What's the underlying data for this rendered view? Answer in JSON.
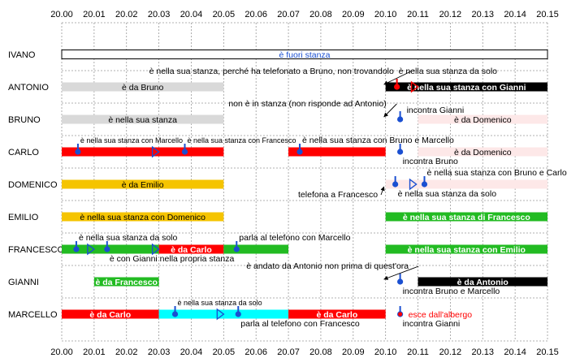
{
  "chart_data": {
    "type": "timeline",
    "colors": {
      "white": "#ffffff",
      "gray": "#d9d9d9",
      "black": "#000000",
      "red": "#ff0000",
      "pink": "#fde8e8",
      "yellow": "#f5c400",
      "green": "#22bb22",
      "cyan": "#00ffff",
      "marker": "#1a4fd1",
      "alert": "#ff0000"
    },
    "x_ticks": [
      "20.00",
      "20.01",
      "20.02",
      "20.03",
      "20.04",
      "20.05",
      "20.06",
      "20.07",
      "20.08",
      "20.09",
      "20.10",
      "20.11",
      "20.12",
      "20.13",
      "20.14",
      "20.15"
    ],
    "rows": [
      {
        "name": "IVANO",
        "bars": [
          {
            "start": 0,
            "end": 15,
            "color": "white",
            "label": "è fuori stanza",
            "label_color": "#1a4fd1"
          }
        ],
        "events": []
      },
      {
        "name": "ANTONIO",
        "bars": [
          {
            "start": 0,
            "end": 5,
            "color": "gray",
            "label": "è da Bruno",
            "label_color": "#000000"
          },
          {
            "start": 10,
            "end": 15,
            "color": "black",
            "label": "è nella sua stanza con Gianni",
            "label_color": "#ffffff"
          }
        ],
        "events": [
          {
            "t": 10.35,
            "kind": "pin-red",
            "text": ""
          },
          {
            "t": 10.9,
            "kind": "triangle-red",
            "text": ""
          }
        ],
        "annotations": [
          {
            "text": "è nella sua stanza, perché ha telefonato a Bruno, non trovandolo",
            "at": 2.7,
            "row_offset": -1,
            "anchor": "start",
            "arrow_to": 9.95
          },
          {
            "text": "è nella sua stanza da solo",
            "at": 10.4,
            "row_offset": -1,
            "anchor": "start"
          }
        ]
      },
      {
        "name": "BRUNO",
        "bars": [
          {
            "start": 0,
            "end": 5,
            "color": "gray",
            "label": "è nella sua stanza",
            "label_color": "#000000"
          },
          {
            "start": 11,
            "end": 15,
            "color": "pink",
            "label": "è da Domenico",
            "label_color": "#000000"
          }
        ],
        "events": [
          {
            "t": 10.45,
            "kind": "pin",
            "text": "incontra Gianni",
            "text_side": "right-up"
          }
        ],
        "annotations": [
          {
            "text": "non è in stanza (non risponde ad Antonio)",
            "at": 5.15,
            "row_offset": -1,
            "anchor": "start",
            "arrow_to": 9.95
          }
        ]
      },
      {
        "name": "CARLO",
        "bars": [
          {
            "start": 0,
            "end": 5,
            "color": "red",
            "label": "",
            "label_color": "#000000"
          },
          {
            "start": 7,
            "end": 10,
            "color": "red",
            "label": "",
            "label_color": "#000000"
          },
          {
            "start": 11,
            "end": 15,
            "color": "pink",
            "label": "è da Domenico",
            "label_color": "#000000"
          }
        ],
        "events": [
          {
            "t": 0.5,
            "kind": "pin",
            "text": "è nella sua stanza con Marcello",
            "text_side": "above",
            "small": true
          },
          {
            "t": 2.9,
            "kind": "triangle",
            "text": ""
          },
          {
            "t": 3.8,
            "kind": "pin",
            "text": "è nella sua stanza con Francesco",
            "text_side": "above",
            "small": true
          },
          {
            "t": 7.35,
            "kind": "pin",
            "text": "è nella sua stanza con Bruno e Marcello",
            "text_side": "above"
          },
          {
            "t": 10.45,
            "kind": "pin",
            "text": "incontra Bruno",
            "text_side": "below"
          }
        ]
      },
      {
        "name": "DOMENICO",
        "bars": [
          {
            "start": 0,
            "end": 5,
            "color": "yellow",
            "label": "è da Emilio",
            "label_color": "#000000"
          },
          {
            "start": 10,
            "end": 15,
            "color": "pink",
            "label": "",
            "label_color": "#000000"
          }
        ],
        "events": [
          {
            "t": 10.3,
            "kind": "pin",
            "text": "è nella sua stanza da solo",
            "text_side": "below-right"
          },
          {
            "t": 10.85,
            "kind": "triangle",
            "text": ""
          },
          {
            "t": 11.2,
            "kind": "pin",
            "text": "è nella sua stanza con Bruno e Carlo",
            "text_side": "above"
          }
        ],
        "annotations": [
          {
            "text": "telefona a Francesco",
            "at": 7.3,
            "row_offset": 1,
            "anchor": "start",
            "arrow_to": 9.95
          }
        ]
      },
      {
        "name": "EMILIO",
        "bars": [
          {
            "start": 0,
            "end": 5,
            "color": "yellow",
            "label": "è nella sua stanza con Domenico",
            "label_color": "#000000"
          },
          {
            "start": 10,
            "end": 15,
            "color": "green",
            "label": "è nella sua stanza di Francesco",
            "label_color": "#ffffff"
          }
        ],
        "events": []
      },
      {
        "name": "FRANCESCO",
        "bars": [
          {
            "start": 0,
            "end": 3,
            "color": "green",
            "label": "",
            "label_color": "#000000"
          },
          {
            "start": 3,
            "end": 5,
            "color": "red",
            "label": "è da Carlo",
            "label_color": "#ffffff"
          },
          {
            "start": 5,
            "end": 7,
            "color": "green",
            "label": "",
            "label_color": "#000000"
          },
          {
            "start": 10,
            "end": 15,
            "color": "green",
            "label": "è nella sua stanza con Emilio",
            "label_color": "#ffffff"
          }
        ],
        "events": [
          {
            "t": 0.45,
            "kind": "pin",
            "text": "è nella sua stanza da solo",
            "text_side": "above"
          },
          {
            "t": 0.9,
            "kind": "triangle",
            "text": ""
          },
          {
            "t": 1.4,
            "kind": "pin",
            "text": "è con Gianni nella propria stanza",
            "text_side": "below"
          },
          {
            "t": 2.9,
            "kind": "triangle",
            "text": ""
          },
          {
            "t": 5.4,
            "kind": "pin",
            "text": "parla al telefono con Marcello",
            "text_side": "above"
          }
        ]
      },
      {
        "name": "GIANNI",
        "bars": [
          {
            "start": 1,
            "end": 3,
            "color": "green",
            "label": "è da Francesco",
            "label_color": "#ffffff"
          },
          {
            "start": 11,
            "end": 15,
            "color": "black",
            "label": "è da Antonio",
            "label_color": "#ffffff"
          }
        ],
        "events": [
          {
            "t": 10.45,
            "kind": "pin",
            "text": "incontra Bruno e Marcello",
            "text_side": "below"
          }
        ],
        "annotations": [
          {
            "text": "è andato da Antonio non prima di quest'ora",
            "at": 5.7,
            "row_offset": -1,
            "anchor": "start",
            "arrow_to": 9.95
          }
        ]
      },
      {
        "name": "MARCELLO",
        "bars": [
          {
            "start": 0,
            "end": 3,
            "color": "red",
            "label": "è da Carlo",
            "label_color": "#ffffff"
          },
          {
            "start": 3,
            "end": 7,
            "color": "cyan",
            "label": "",
            "label_color": "#000000"
          },
          {
            "start": 7,
            "end": 10,
            "color": "red",
            "label": "è da Carlo",
            "label_color": "#ffffff"
          }
        ],
        "events": [
          {
            "t": 3.5,
            "kind": "pin",
            "text": "è nella sua stanza da solo",
            "text_side": "above",
            "small": true
          },
          {
            "t": 4.9,
            "kind": "triangle",
            "text": ""
          },
          {
            "t": 5.45,
            "kind": "pin",
            "text": "parla al telefono con Francesco",
            "text_side": "below"
          },
          {
            "t": 10.45,
            "kind": "pin",
            "text": "incontra Gianni",
            "text_side": "below"
          },
          {
            "t": 10.45,
            "kind": "dot-red",
            "text": "esce dall'albergo",
            "text_side": "right",
            "text_color": "#ff0000"
          }
        ]
      }
    ]
  }
}
